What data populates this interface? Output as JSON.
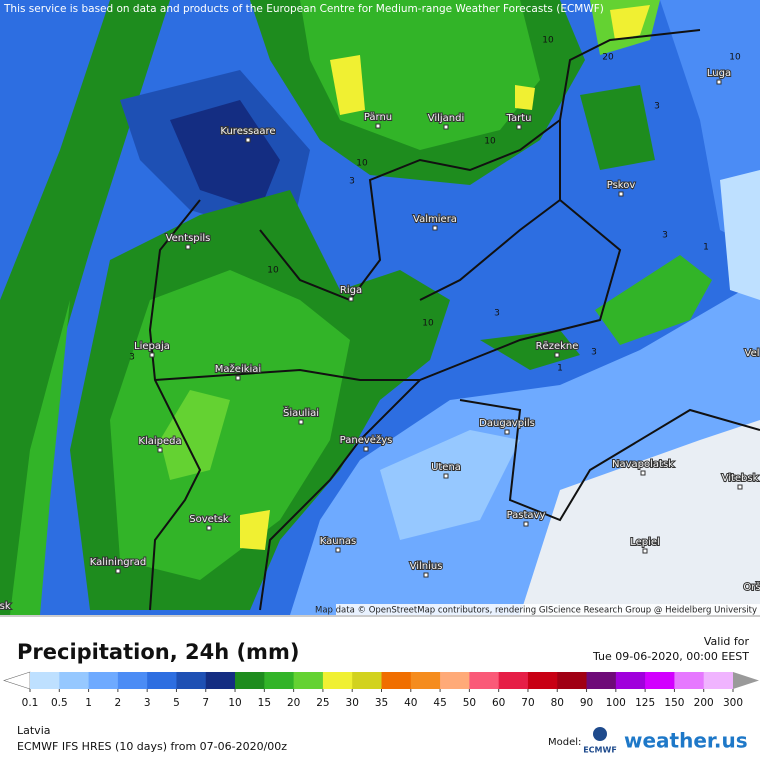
{
  "header": {
    "attribution": "This service is based on data and products of the European Centre for Medium-range Weather Forecasts (ECMWF)"
  },
  "map": {
    "cities": [
      "Kuressaare",
      "Pärnu",
      "Viljandi",
      "Tartu",
      "Luga",
      "Pskov",
      "Valmiera",
      "Ventspils",
      "Riga",
      "Liepaja",
      "Rēzekne",
      "Mažeikiai",
      "Šiauliai",
      "Daugavpils",
      "Klaipeda",
      "Panevėžys",
      "Navapolatsk",
      "Utena",
      "Vitebsk",
      "Sovetsk",
      "Pastavy",
      "Kaunas",
      "Lepiel",
      "Vilnius",
      "Kaliningrad"
    ],
    "edge_labels": [
      "Vel",
      "Orš",
      "nsk"
    ],
    "contour_labels": [
      10,
      10,
      20,
      3,
      10,
      3,
      10,
      10,
      1,
      3,
      10,
      3,
      1,
      3,
      3
    ],
    "map_attribution": "Map data © OpenStreetMap contributors, rendering GIScience Research Group @ Heidelberg University"
  },
  "footer": {
    "title": "Precipitation, 24h (mm)",
    "valid_label": "Valid for",
    "valid_time": "Tue 09-06-2020, 00:00 EEST",
    "region": "Latvia",
    "model_run": "ECMWF IFS HRES (10 days) from 07-06-2020/00z",
    "model_label": "Model:",
    "model_logo": "ECMWF",
    "brand": "weather.us"
  },
  "legend": {
    "ticks": [
      0.1,
      0.5,
      1,
      2,
      3,
      5,
      7,
      10,
      15,
      20,
      25,
      30,
      35,
      40,
      45,
      50,
      60,
      70,
      80,
      90,
      100,
      125,
      150,
      200,
      300
    ],
    "colors": [
      "#bee0ff",
      "#96c8ff",
      "#6eaaff",
      "#4b8cf5",
      "#2d6ee1",
      "#1e50b4",
      "#142d82",
      "#1e8c1e",
      "#32b428",
      "#64d232",
      "#f0f032",
      "#d2d21e",
      "#f06e00",
      "#f58c1e",
      "#ffaa78",
      "#fa5a78",
      "#e61e46",
      "#c80014",
      "#a00014",
      "#6e0a78",
      "#a000dc",
      "#d200ff",
      "#e678ff",
      "#f0b4ff"
    ],
    "under_color": "#ffffff",
    "over_color": "#9a9a9a"
  }
}
